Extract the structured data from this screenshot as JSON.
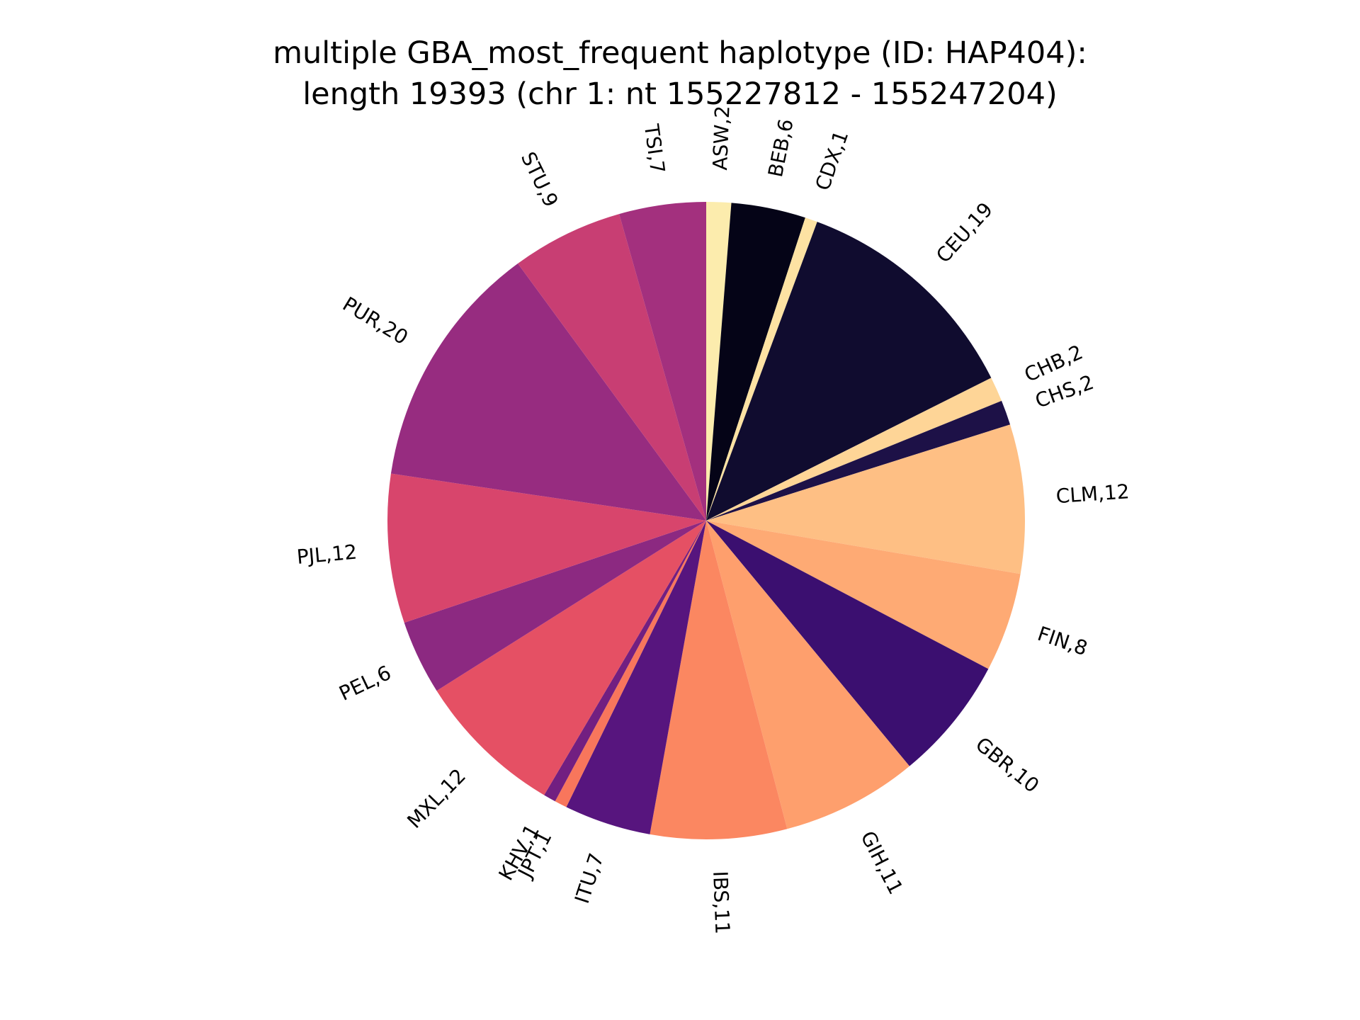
{
  "chart_data": {
    "type": "pie",
    "title": [
      "multiple GBA_most_frequent haplotype (ID: HAP404):",
      "length 19393 (chr 1: nt 155227812 - 155247204)"
    ],
    "start_angle_deg": 90,
    "direction": "clockwise",
    "legend": "none",
    "slices": [
      {
        "label": "ASW,2",
        "value": 2,
        "color": "#fcecad"
      },
      {
        "label": "BEB,6",
        "value": 6,
        "color": "#050417"
      },
      {
        "label": "CDX,1",
        "value": 1,
        "color": "#fde2a3"
      },
      {
        "label": "CEU,19",
        "value": 19,
        "color": "#100c2f"
      },
      {
        "label": "CHB,2",
        "value": 2,
        "color": "#fed597"
      },
      {
        "label": "CHS,2",
        "value": 2,
        "color": "#1d1147"
      },
      {
        "label": "CLM,12",
        "value": 12,
        "color": "#febf84"
      },
      {
        "label": "FIN,8",
        "value": 8,
        "color": "#feaa74"
      },
      {
        "label": "GBR,10",
        "value": 10,
        "color": "#3b0f70"
      },
      {
        "label": "GIH,11",
        "value": 11,
        "color": "#fe9f6d"
      },
      {
        "label": "IBS,11",
        "value": 11,
        "color": "#fb8761"
      },
      {
        "label": "ITU,7",
        "value": 7,
        "color": "#57157e"
      },
      {
        "label": "JPT,1",
        "value": 1,
        "color": "#f8765c"
      },
      {
        "label": "KHV,1",
        "value": 1,
        "color": "#721f81"
      },
      {
        "label": "MXL,12",
        "value": 12,
        "color": "#e55064"
      },
      {
        "label": "PEL,6",
        "value": 6,
        "color": "#8c2981"
      },
      {
        "label": "PJL,12",
        "value": 12,
        "color": "#d8456c"
      },
      {
        "label": "PUR,20",
        "value": 20,
        "color": "#972c80"
      },
      {
        "label": "STU,9",
        "value": 9,
        "color": "#c83e73"
      },
      {
        "label": "TSI,7",
        "value": 7,
        "color": "#a3307e"
      }
    ]
  }
}
